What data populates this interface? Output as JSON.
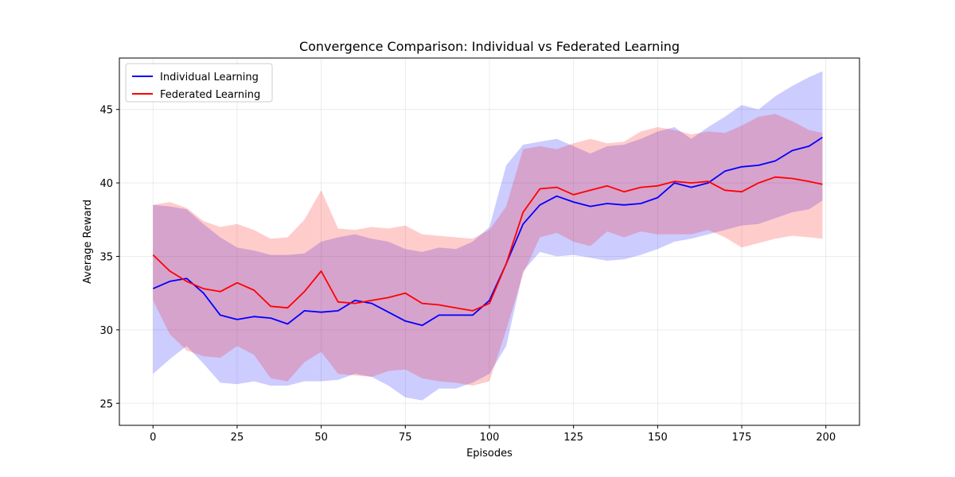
{
  "chart_data": {
    "type": "line",
    "title": "Convergence Comparison: Individual vs Federated Learning",
    "xlabel": "Episodes",
    "ylabel": "Average Reward",
    "xlim": [
      -10,
      210
    ],
    "ylim": [
      23.5,
      48.5
    ],
    "xticks": [
      0,
      25,
      50,
      75,
      100,
      125,
      150,
      175,
      200
    ],
    "yticks": [
      25,
      30,
      35,
      40,
      45
    ],
    "grid": true,
    "legend_position": "top-left",
    "x": [
      0,
      5,
      10,
      15,
      20,
      25,
      30,
      35,
      40,
      45,
      50,
      55,
      60,
      65,
      70,
      75,
      80,
      85,
      90,
      95,
      100,
      105,
      110,
      115,
      120,
      125,
      130,
      135,
      140,
      145,
      150,
      155,
      160,
      165,
      170,
      175,
      180,
      185,
      190,
      195,
      199
    ],
    "series": [
      {
        "name": "Individual Learning",
        "color": "#0000ff",
        "band_color": "#0000ff",
        "values": [
          32.8,
          33.3,
          33.5,
          32.5,
          31.0,
          30.7,
          30.9,
          30.8,
          30.4,
          31.3,
          31.2,
          31.3,
          32.0,
          31.8,
          31.2,
          30.6,
          30.3,
          31.0,
          31.0,
          31.0,
          32.0,
          34.5,
          37.2,
          38.5,
          39.1,
          38.7,
          38.4,
          38.6,
          38.5,
          38.6,
          39.0,
          40.0,
          39.7,
          40.0,
          40.8,
          41.1,
          41.2,
          41.5,
          42.2,
          42.5,
          43.1
        ],
        "upper": [
          38.5,
          38.4,
          38.2,
          37.2,
          36.3,
          35.6,
          35.4,
          35.1,
          35.1,
          35.2,
          36.0,
          36.3,
          36.5,
          36.2,
          36.0,
          35.5,
          35.3,
          35.6,
          35.5,
          36.0,
          37.0,
          41.2,
          42.6,
          42.8,
          43.0,
          42.5,
          42.0,
          42.5,
          42.6,
          43.0,
          43.5,
          43.8,
          43.0,
          43.8,
          44.5,
          45.3,
          45.0,
          45.9,
          46.6,
          47.2,
          47.6
        ],
        "lower": [
          27.0,
          28.0,
          28.9,
          27.7,
          26.4,
          26.3,
          26.5,
          26.2,
          26.2,
          26.5,
          26.5,
          26.6,
          27.0,
          26.8,
          26.2,
          25.4,
          25.2,
          26.0,
          26.0,
          26.4,
          27.0,
          28.9,
          34.0,
          35.3,
          35.0,
          35.1,
          34.9,
          34.7,
          34.8,
          35.1,
          35.5,
          36.0,
          36.2,
          36.5,
          36.8,
          37.1,
          37.2,
          37.6,
          38.0,
          38.2,
          38.8
        ]
      },
      {
        "name": "Federated Learning",
        "color": "#ff0000",
        "band_color": "#ff0000",
        "values": [
          35.1,
          34.0,
          33.3,
          32.8,
          32.6,
          33.2,
          32.7,
          31.6,
          31.5,
          32.6,
          34.0,
          31.9,
          31.8,
          32.0,
          32.2,
          32.5,
          31.8,
          31.7,
          31.5,
          31.3,
          31.8,
          34.5,
          38.0,
          39.6,
          39.7,
          39.2,
          39.5,
          39.8,
          39.4,
          39.7,
          39.8,
          40.1,
          40.0,
          40.1,
          39.5,
          39.4,
          40.0,
          40.4,
          40.3,
          40.1,
          39.9
        ],
        "upper": [
          38.5,
          38.7,
          38.3,
          37.4,
          37.0,
          37.2,
          36.8,
          36.2,
          36.3,
          37.5,
          39.5,
          36.9,
          36.8,
          37.0,
          36.9,
          37.1,
          36.5,
          36.4,
          36.3,
          36.2,
          36.8,
          38.4,
          42.3,
          42.5,
          42.3,
          42.7,
          43.0,
          42.7,
          42.8,
          43.5,
          43.8,
          43.6,
          43.3,
          43.5,
          43.4,
          43.9,
          44.5,
          44.7,
          44.2,
          43.6,
          43.4
        ],
        "lower": [
          32.0,
          29.7,
          28.6,
          28.2,
          28.1,
          28.9,
          28.3,
          26.7,
          26.5,
          27.8,
          28.5,
          27.0,
          26.9,
          26.8,
          27.2,
          27.3,
          26.7,
          26.5,
          26.4,
          26.2,
          26.5,
          30.0,
          33.8,
          36.3,
          36.6,
          36.0,
          35.7,
          36.7,
          36.3,
          36.7,
          36.5,
          36.5,
          36.5,
          36.8,
          36.3,
          35.6,
          35.9,
          36.2,
          36.4,
          36.3,
          36.2
        ]
      }
    ]
  }
}
